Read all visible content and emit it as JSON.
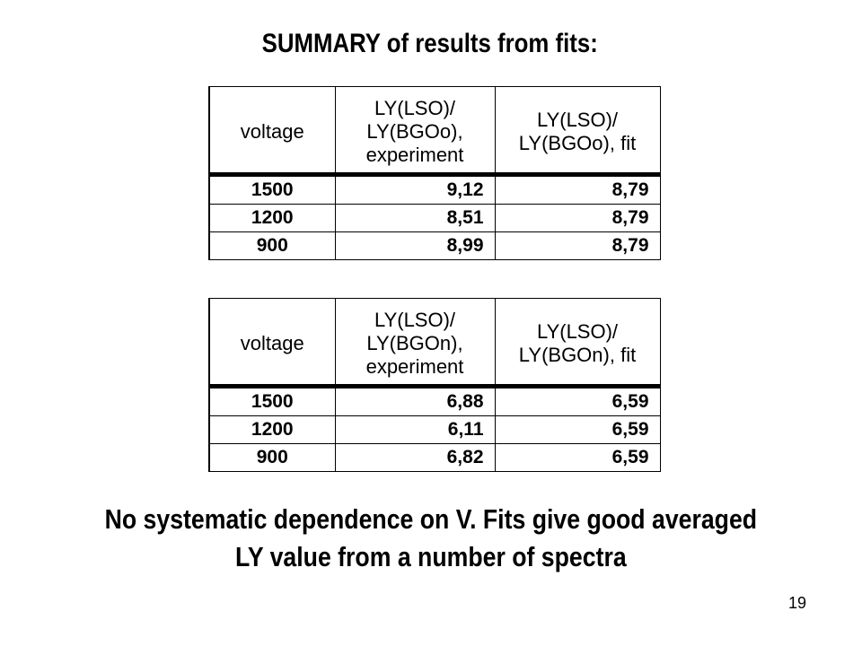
{
  "title": "SUMMARY of results from fits:",
  "tables": [
    {
      "headers": {
        "voltage": "voltage",
        "experiment": [
          "LY(LSO)/",
          "LY(BGOo),",
          "experiment"
        ],
        "fit": [
          "LY(LSO)/",
          "LY(BGOo), fit"
        ]
      },
      "rows": [
        {
          "voltage": "1500",
          "experiment": "9,12",
          "fit": "8,79"
        },
        {
          "voltage": "1200",
          "experiment": "8,51",
          "fit": "8,79"
        },
        {
          "voltage": "900",
          "experiment": "8,99",
          "fit": "8,79"
        }
      ]
    },
    {
      "headers": {
        "voltage": "voltage",
        "experiment": [
          "LY(LSO)/",
          "LY(BGOn),",
          "experiment"
        ],
        "fit": [
          "LY(LSO)/",
          "LY(BGOn), fit"
        ]
      },
      "rows": [
        {
          "voltage": "1500",
          "experiment": "6,88",
          "fit": "6,59"
        },
        {
          "voltage": "1200",
          "experiment": "6,11",
          "fit": "6,59"
        },
        {
          "voltage": "900",
          "experiment": "6,82",
          "fit": "6,59"
        }
      ]
    }
  ],
  "conclusion": [
    "No systematic dependence on V. Fits give good averaged",
    "LY value from a number of spectra"
  ],
  "page_number": "19"
}
